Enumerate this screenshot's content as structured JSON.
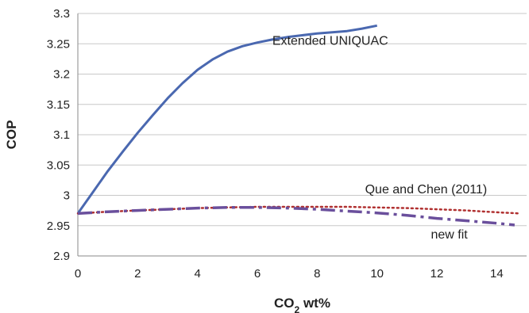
{
  "chart_data": {
    "type": "line",
    "xlabel": "CO2 wt%",
    "ylabel": "COP",
    "xlim": [
      0,
      15
    ],
    "ylim": [
      2.9,
      3.3
    ],
    "xticks": [
      "0",
      "2",
      "4",
      "6",
      "8",
      "10",
      "12",
      "14"
    ],
    "yticks": [
      "2.9",
      "2.95",
      "3",
      "3.05",
      "3.1",
      "3.15",
      "3.2",
      "3.25",
      "3.3"
    ],
    "grid": "horizontal",
    "legend": "none",
    "series": [
      {
        "name": "Extended UNIQUAC",
        "style": "solid",
        "color": "#4a68b0",
        "x": [
          0,
          0.5,
          1,
          1.5,
          2,
          2.5,
          3,
          3.5,
          4,
          4.5,
          5,
          5.5,
          6,
          6.5,
          7,
          7.5,
          8,
          8.5,
          9,
          9.5,
          10
        ],
        "y": [
          2.97,
          3.005,
          3.04,
          3.072,
          3.103,
          3.132,
          3.16,
          3.185,
          3.207,
          3.224,
          3.237,
          3.246,
          3.252,
          3.257,
          3.261,
          3.264,
          3.267,
          3.269,
          3.271,
          3.275,
          3.28
        ]
      },
      {
        "name": "Que and Chen (2011)",
        "style": "dotted",
        "color": "#b03030",
        "x": [
          0,
          1,
          2,
          3,
          4,
          5,
          6,
          7,
          8,
          9,
          10,
          11,
          12,
          13,
          14,
          14.8
        ],
        "y": [
          2.97,
          2.973,
          2.975,
          2.977,
          2.979,
          2.98,
          2.981,
          2.981,
          2.981,
          2.981,
          2.98,
          2.979,
          2.977,
          2.975,
          2.972,
          2.97
        ]
      },
      {
        "name": "new fit",
        "style": "dashdot",
        "color": "#6a4f9c",
        "x": [
          0,
          1,
          2,
          3,
          4,
          5,
          6,
          7,
          8,
          9,
          10,
          11,
          12,
          13,
          14,
          14.6
        ],
        "y": [
          2.97,
          2.973,
          2.975,
          2.977,
          2.979,
          2.98,
          2.98,
          2.979,
          2.977,
          2.974,
          2.971,
          2.967,
          2.962,
          2.958,
          2.954,
          2.951
        ]
      }
    ],
    "annotations": [
      {
        "text": "Extended UNIQUAC",
        "x": 6.5,
        "y": 3.255
      },
      {
        "text": "Que and Chen (2011)",
        "x": 9.6,
        "y": 3.01
      },
      {
        "text": "new fit",
        "x": 11.8,
        "y": 2.935
      }
    ]
  }
}
